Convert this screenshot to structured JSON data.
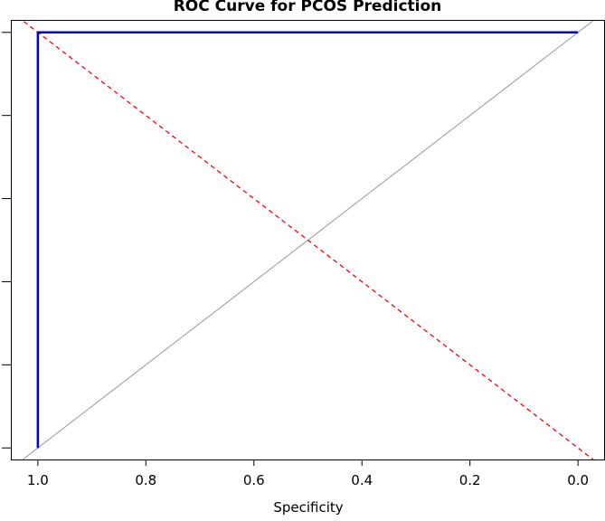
{
  "chart_data": {
    "type": "line",
    "title": "ROC Curve for PCOS Prediction",
    "xlabel": "Specificity",
    "ylabel": "",
    "x_reversed": true,
    "xlim": [
      1.05,
      -0.05
    ],
    "ylim": [
      -0.03,
      1.03
    ],
    "x_ticks": [
      1.0,
      0.8,
      0.6,
      0.4,
      0.2,
      0.0
    ],
    "x_tick_labels": [
      "1.0",
      "0.8",
      "0.6",
      "0.4",
      "0.2",
      "0.0"
    ],
    "y_ticks": [
      0.0,
      0.2,
      0.4,
      0.6,
      0.8,
      1.0
    ],
    "series": [
      {
        "name": "roc-curve",
        "color": "#0000CD",
        "style": "solid",
        "x": [
          1.0,
          1.0,
          0.0
        ],
        "y": [
          0.0,
          1.0,
          1.0
        ]
      },
      {
        "name": "reference-diagonal",
        "color": "#A0A0A0",
        "style": "solid",
        "x": [
          1.05,
          -0.05
        ],
        "y": [
          -0.05,
          1.05
        ]
      },
      {
        "name": "red-dashed-line",
        "color": "#FF0000",
        "style": "dashed",
        "x": [
          1.05,
          -0.05
        ],
        "y": [
          1.05,
          -0.05
        ]
      }
    ]
  }
}
